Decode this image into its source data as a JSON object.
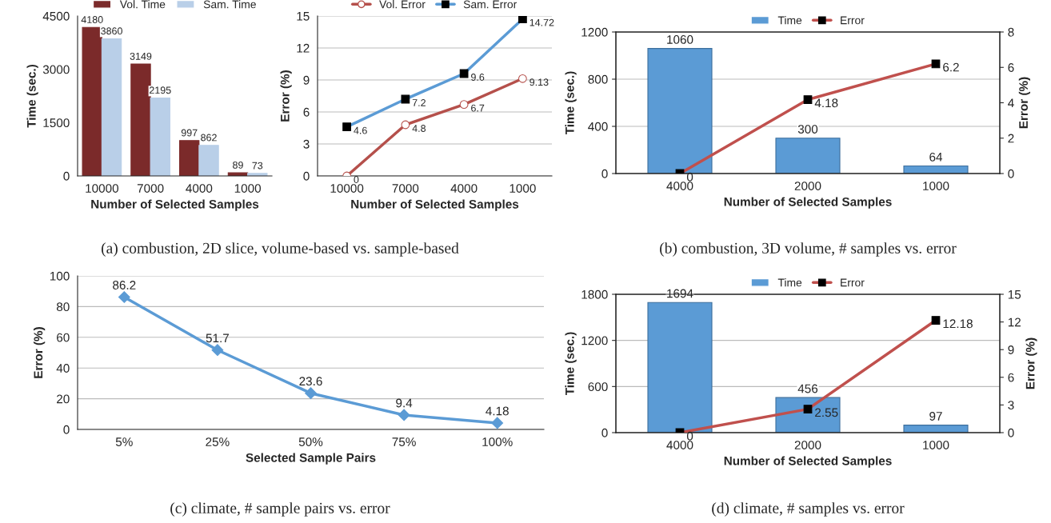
{
  "chart_data": [
    {
      "type": "bar",
      "categories": [
        "10000",
        "7000",
        "4000",
        "1000"
      ],
      "xlabel": "Number of Selected Samples",
      "ylabel": "Time (sec.)",
      "ylim": [
        0,
        4500
      ],
      "yticks": [
        0,
        1500,
        3000,
        4500
      ],
      "legend": "top",
      "data_labels": true,
      "grid": false,
      "series": [
        {
          "name": "Vol. Time",
          "color": "#7b2a2a",
          "values": [
            4180,
            3149,
            997,
            89
          ]
        },
        {
          "name": "Sam. Time",
          "color": "#b9cfe8",
          "values": [
            3860,
            2195,
            862,
            73
          ]
        }
      ],
      "annotations": [
        "(a) combustion, 2D slice, volume-based vs. sample-based"
      ]
    },
    {
      "type": "line",
      "categories": [
        "10000",
        "7000",
        "4000",
        "1000"
      ],
      "xlabel": "Number of Selected Samples",
      "ylabel": "Error (%)",
      "ylim": [
        0,
        15
      ],
      "yticks": [
        0,
        3,
        6,
        9,
        12,
        15
      ],
      "legend": "top",
      "data_labels": true,
      "grid": "y",
      "series": [
        {
          "name": "Vol. Error",
          "color": "#b5504b",
          "marker": "circle",
          "values": [
            0,
            4.8,
            6.7,
            9.13
          ]
        },
        {
          "name": "Sam. Error",
          "color": "#5b9bd5",
          "marker": "square",
          "values": [
            4.6,
            7.2,
            9.6,
            14.72
          ]
        }
      ]
    },
    {
      "type": "bar",
      "categories": [
        "4000",
        "2000",
        "1000"
      ],
      "xlabel": "Number of Selected Samples",
      "ylabel": "Time (sec.)",
      "y2label": "Error (%)",
      "ylim": [
        0,
        1200
      ],
      "yticks": [
        0,
        400,
        800,
        1200
      ],
      "y2lim": [
        0,
        8
      ],
      "y2ticks": [
        0,
        2,
        4,
        6,
        8
      ],
      "legend": "top",
      "data_labels": true,
      "grid": "y",
      "series": [
        {
          "name": "Time",
          "color": "#5b9bd5",
          "values": [
            1060,
            300,
            64
          ]
        },
        {
          "name": "Error",
          "type": "line",
          "axis": "y2",
          "marker": "square",
          "color": "#c0504d",
          "values": [
            0,
            4.18,
            6.2
          ]
        }
      ],
      "annotations": [
        "(b) combustion, 3D volume, # samples vs. error"
      ]
    },
    {
      "type": "line",
      "categories": [
        "5%",
        "25%",
        "50%",
        "75%",
        "100%"
      ],
      "xlabel": "Selected Sample Pairs",
      "ylabel": "Error (%)",
      "ylim": [
        0,
        100
      ],
      "yticks": [
        0,
        20,
        40,
        60,
        80,
        100
      ],
      "data_labels": true,
      "grid": "y",
      "marker": "diamond",
      "series": [
        {
          "color": "#5b9bd5",
          "values": [
            86.2,
            51.7,
            23.6,
            9.4,
            4.18
          ]
        }
      ],
      "annotations": [
        "(c) climate, # sample pairs vs. error"
      ]
    },
    {
      "type": "bar",
      "categories": [
        "4000",
        "2000",
        "1000"
      ],
      "xlabel": "Number of Selected Samples",
      "ylabel": "Time (sec.)",
      "y2label": "Error (%)",
      "ylim": [
        0,
        1800
      ],
      "yticks": [
        0,
        600,
        1200,
        1800
      ],
      "y2lim": [
        0,
        15
      ],
      "y2ticks": [
        0,
        3,
        6,
        9,
        12,
        15
      ],
      "legend": "top",
      "data_labels": true,
      "grid": "y",
      "series": [
        {
          "name": "Time",
          "color": "#5b9bd5",
          "values": [
            1694,
            456,
            97
          ]
        },
        {
          "name": "Error",
          "type": "line",
          "axis": "y2",
          "marker": "square",
          "color": "#c0504d",
          "values": [
            0,
            2.55,
            12.18
          ]
        }
      ],
      "annotations": [
        "(d) climate, # samples vs. error"
      ]
    }
  ]
}
